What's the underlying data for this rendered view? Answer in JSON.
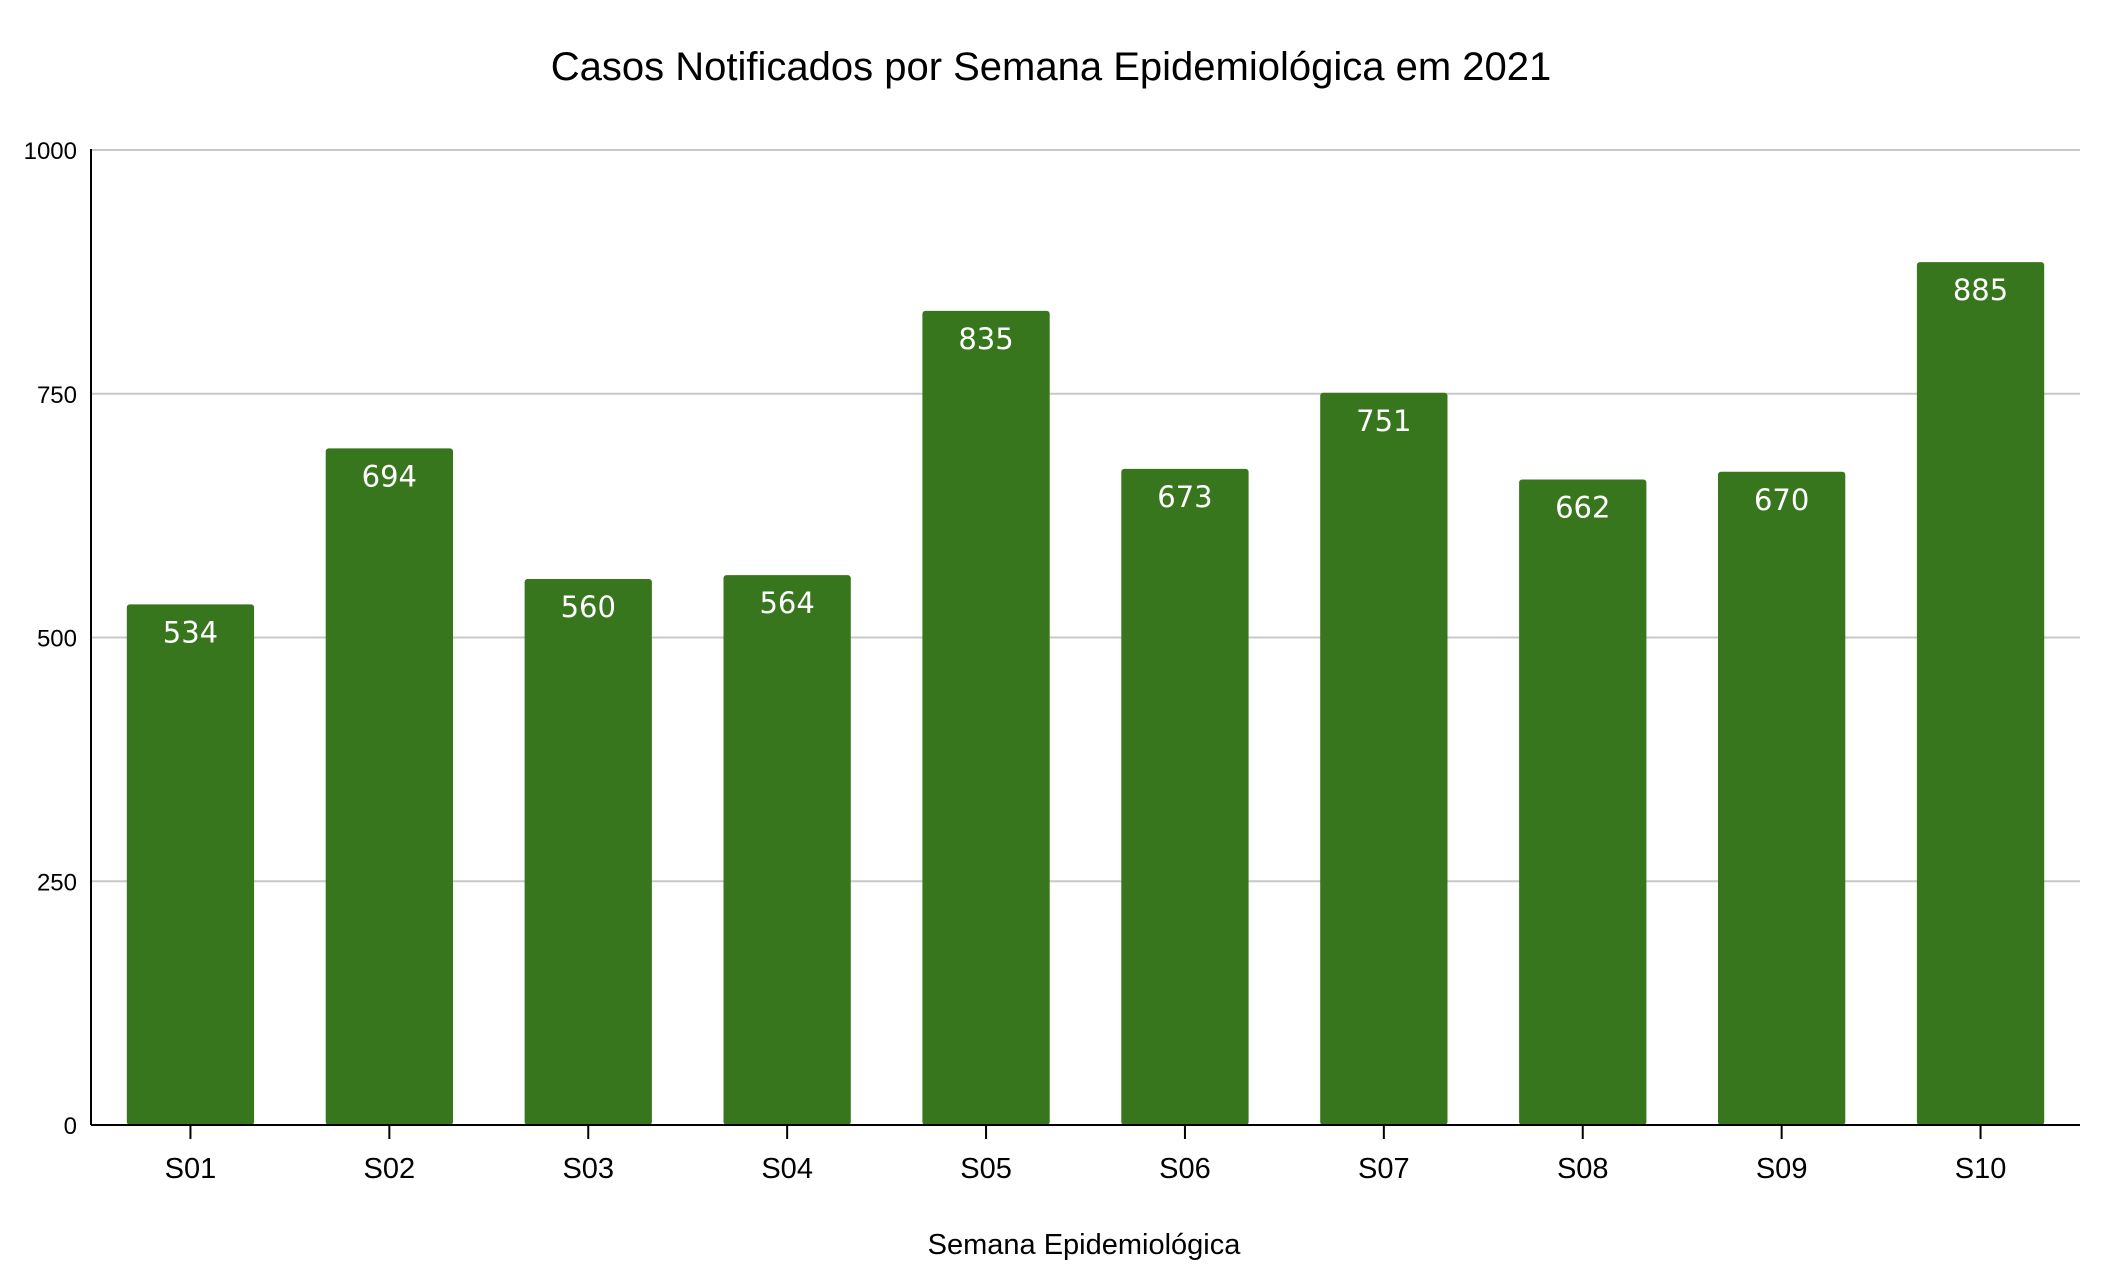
{
  "chart_data": {
    "type": "bar",
    "title": "Casos Notificados por Semana Epidemiológica em 2021",
    "xlabel": "Semana Epidemiológica",
    "ylabel": "",
    "categories": [
      "S01",
      "S02",
      "S03",
      "S04",
      "S05",
      "S06",
      "S07",
      "S08",
      "S09",
      "S10"
    ],
    "values": [
      534,
      694,
      560,
      564,
      835,
      673,
      751,
      662,
      670,
      885
    ],
    "data_labels": [
      "534",
      "694",
      "560",
      "564",
      "835",
      "673",
      "751",
      "662",
      "670",
      "885"
    ],
    "ylim": [
      0,
      1000
    ],
    "yticks": [
      0,
      250,
      500,
      750,
      1000
    ],
    "ytick_labels": [
      "0",
      "250",
      "500",
      "750",
      "1000"
    ],
    "grid": true,
    "legend": "none",
    "bar_color": "#38761d",
    "label_color": "#ffffff",
    "grid_color": "#c8c8c8"
  }
}
